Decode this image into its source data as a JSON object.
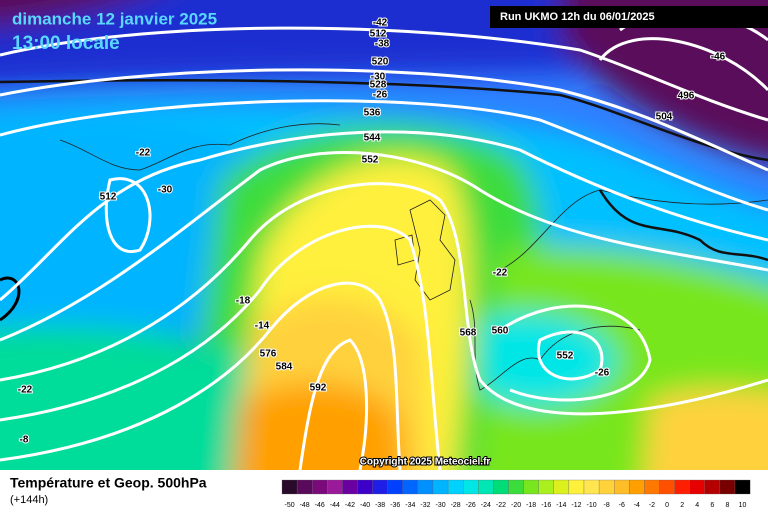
{
  "header": {
    "title": "dimanche 12 janvier 2025",
    "subtitle": "13:00 locale",
    "run_info": "Run UKMO 12h du 06/01/2025"
  },
  "map": {
    "copyright": "Copyright 2025 Meteociel.fr",
    "labels": [
      "-42",
      "512",
      "-38",
      "520",
      "-30",
      "528",
      "-26",
      "536",
      "544",
      "552",
      "-46",
      "496",
      "504",
      "-22",
      "-30",
      "512",
      "-22",
      "-18",
      "-14",
      "576",
      "584",
      "592",
      "568",
      "560",
      "552",
      "-26",
      "-22",
      "-8"
    ]
  },
  "footer": {
    "title": "Température et Geop. 500hPa",
    "lead_time": "(+144h)"
  },
  "legend": {
    "labels": [
      -50,
      -48,
      -46,
      -44,
      -42,
      -40,
      -38,
      -36,
      -34,
      -32,
      -30,
      -28,
      -26,
      -24,
      -22,
      -20,
      -18,
      -16,
      -14,
      -12,
      -10,
      -8,
      -6,
      -4,
      -2,
      0,
      2,
      4,
      6,
      8,
      10
    ],
    "colors": [
      "#2a0a2a",
      "#5a0a5a",
      "#7a0a7a",
      "#9a1a9a",
      "#6a00a0",
      "#3c00c8",
      "#1e1ee6",
      "#0040ff",
      "#0066ff",
      "#0090ff",
      "#00b4ff",
      "#00d2ff",
      "#00e6e6",
      "#00e6b4",
      "#00dc78",
      "#3cdc3c",
      "#78e61e",
      "#aaf01e",
      "#dcf01e",
      "#fff03c",
      "#ffe650",
      "#ffd23c",
      "#ffbe28",
      "#ffa000",
      "#ff7800",
      "#ff5000",
      "#ff1e00",
      "#e60000",
      "#b40000",
      "#780000",
      "#000000"
    ]
  }
}
